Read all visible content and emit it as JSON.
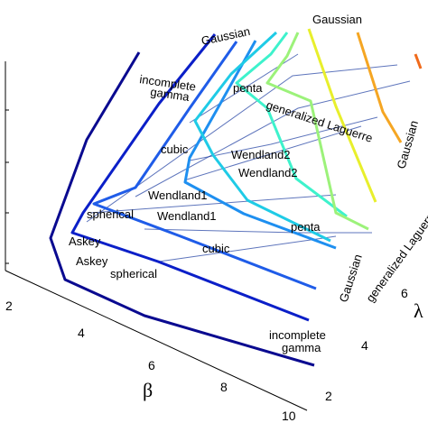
{
  "chart_data": {
    "type": "line",
    "view": "3d",
    "xlabel": "β",
    "ylabel": "λ",
    "zlabel": "",
    "x_ticks": [
      "2",
      "4",
      "6",
      "8",
      "10"
    ],
    "y_ticks": [
      "2",
      "4",
      "6"
    ],
    "xlim": [
      2,
      10
    ],
    "ylim": [
      2,
      7
    ],
    "curves": [
      {
        "value": 2.0,
        "color": "#0a0a90"
      },
      {
        "value": 2.5,
        "color": "#0b1fc8"
      },
      {
        "value": 3.0,
        "color": "#1f5ce8"
      },
      {
        "value": 3.5,
        "color": "#1e8ff0"
      },
      {
        "value": 4.0,
        "color": "#1fcbe6"
      },
      {
        "value": 4.5,
        "color": "#3ef2cc"
      },
      {
        "value": 5.0,
        "color": "#9cf27a"
      },
      {
        "value": 5.5,
        "color": "#e8ef2c"
      },
      {
        "value": 6.0,
        "color": "#f5a623"
      },
      {
        "value": 6.5,
        "color": "#f06a1b"
      }
    ],
    "family_labels": [
      "Gaussian",
      "Gaussian",
      "Gaussian",
      "incomplete gamma",
      "incomplete gamma",
      "penta",
      "penta",
      "generalized Laguerre",
      "generalized Laguerre",
      "cubic",
      "cubic",
      "Wendland2",
      "Wendland2",
      "Wendland1",
      "Wendland1",
      "spherical",
      "spherical",
      "Askey",
      "Askey"
    ]
  },
  "labels": {
    "gaussian_top": "Gaussian",
    "gaussian_left": "Gaussian",
    "gaussian_right": "Gaussian",
    "incomplete_top_1": "incomplete",
    "incomplete_top_2": "gamma",
    "incomplete_bottom_1": "incomplete",
    "incomplete_bottom_2": "gamma",
    "penta_top": "penta",
    "penta_bottom": "penta",
    "laguerre_top": "generalized Laguerre",
    "laguerre_side": "generalized Laguerre",
    "cubic_top": "cubic",
    "cubic_bottom": "cubic",
    "wendland2_a": "Wendland2",
    "wendland2_b": "Wendland2",
    "wendland1_a": "Wendland1",
    "wendland1_b": "Wendland1",
    "spherical_a": "spherical",
    "spherical_b": "spherical",
    "askey_a": "Askey",
    "askey_b": "Askey",
    "gaussian_bottom": "Gaussian"
  }
}
